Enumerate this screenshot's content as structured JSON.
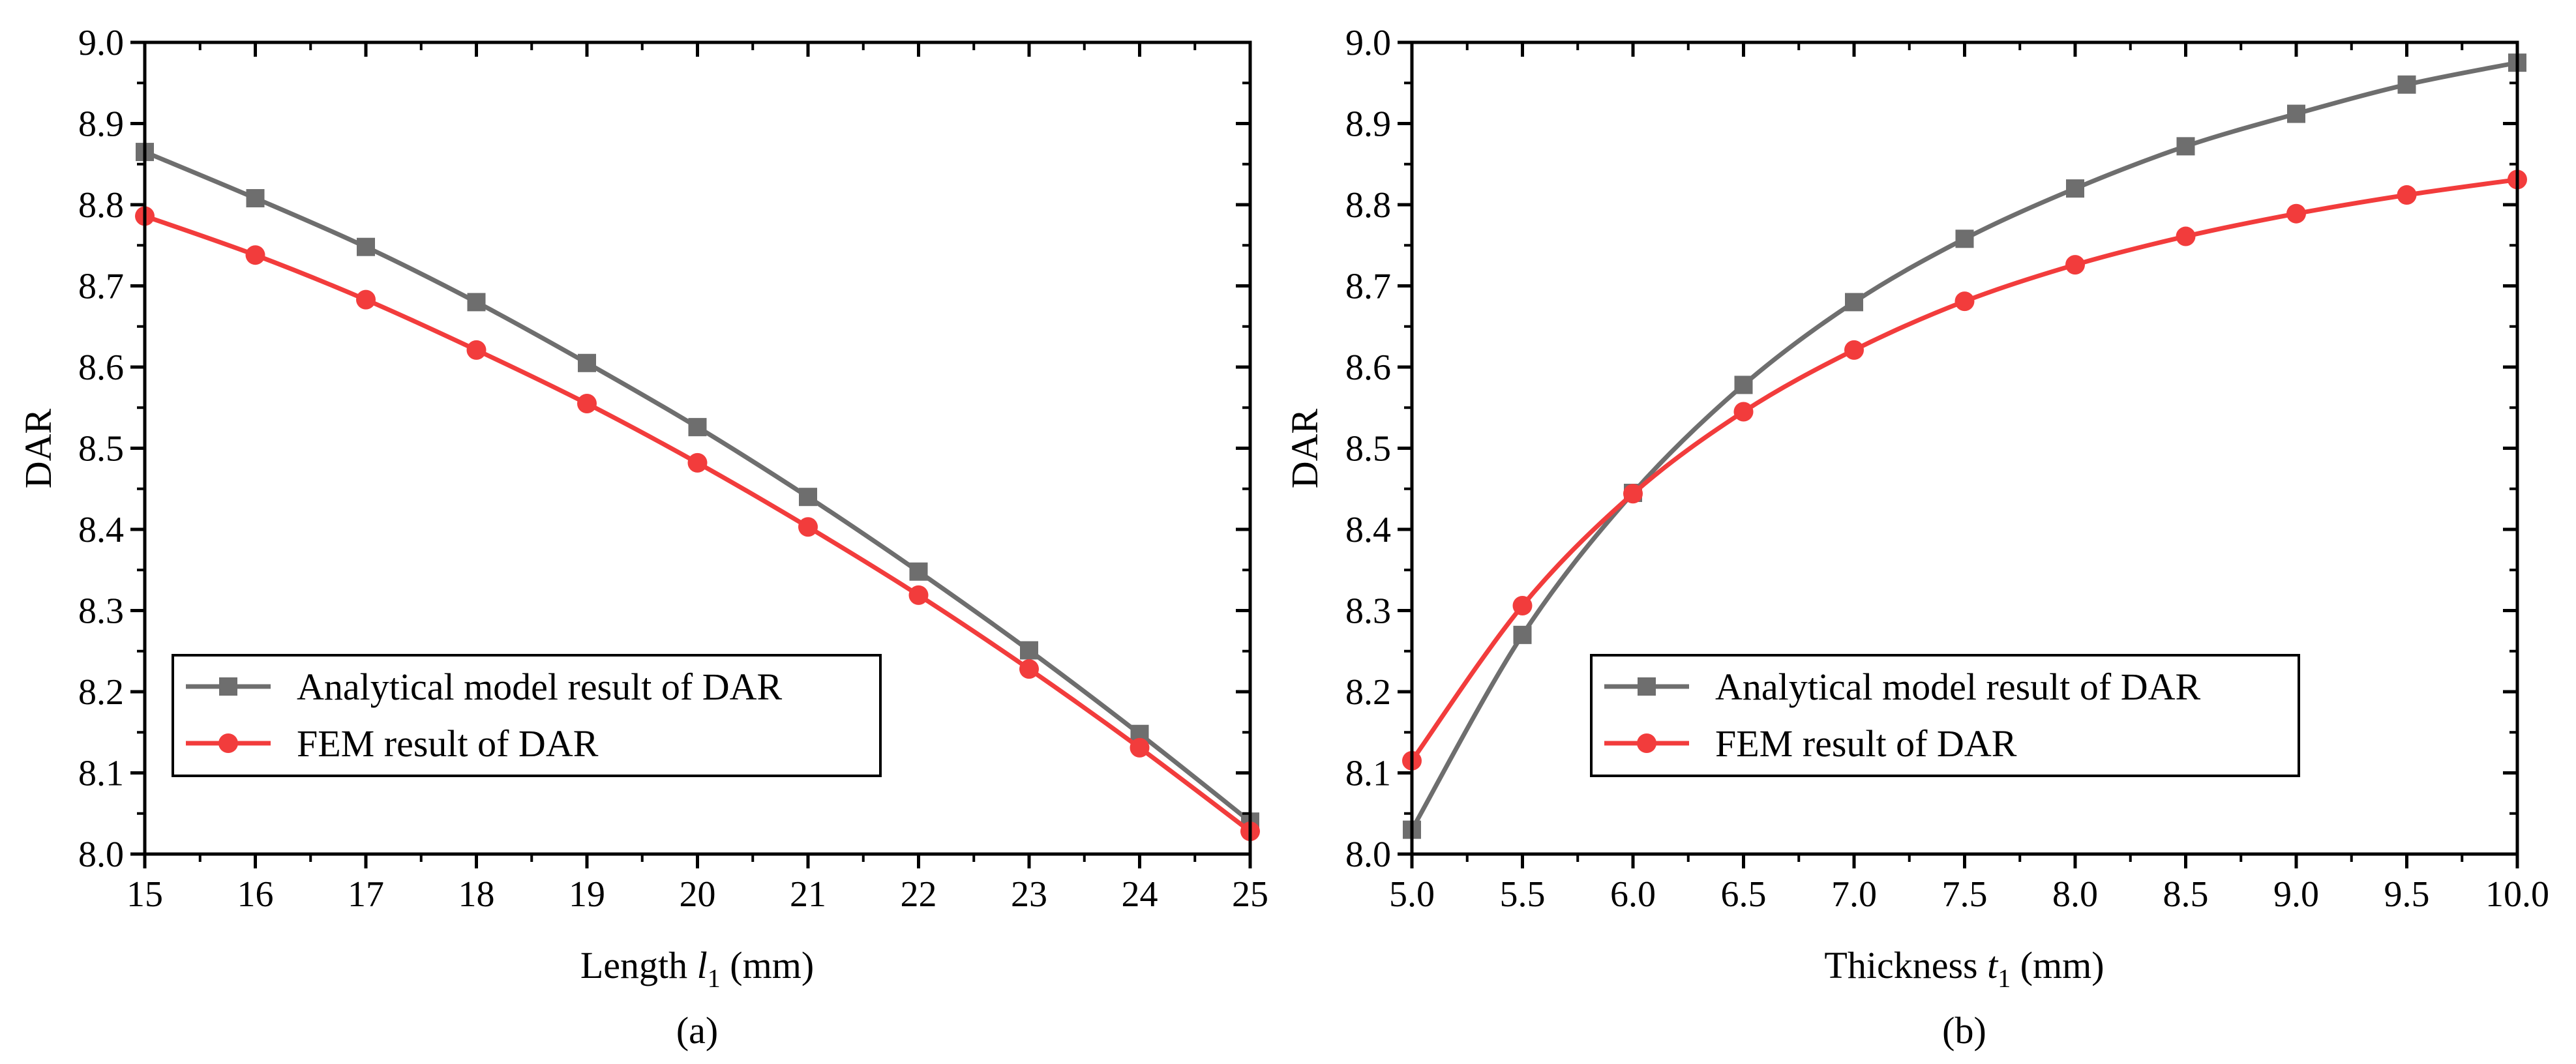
{
  "chart_data": [
    {
      "id": "a",
      "type": "line",
      "caption": "(a)",
      "xlabel_prefix": "Length ",
      "xlabel_var": "l",
      "xlabel_sub": "1",
      "xlabel_suffix": " (mm)",
      "ylabel": "DAR",
      "xlim": [
        15,
        25
      ],
      "ylim": [
        8.0,
        9.0
      ],
      "xticks": [
        15,
        16,
        17,
        18,
        19,
        20,
        21,
        22,
        23,
        24,
        25
      ],
      "xtick_labels": [
        "15",
        "16",
        "17",
        "18",
        "19",
        "20",
        "21",
        "22",
        "23",
        "24",
        "25"
      ],
      "yticks": [
        8.0,
        8.1,
        8.2,
        8.3,
        8.4,
        8.5,
        8.6,
        8.7,
        8.8,
        8.9,
        9.0
      ],
      "ytick_labels": [
        "8.0",
        "8.1",
        "8.2",
        "8.3",
        "8.4",
        "8.5",
        "8.6",
        "8.7",
        "8.8",
        "8.9",
        "9.0"
      ],
      "x": [
        15,
        16,
        17,
        18,
        19,
        20,
        21,
        22,
        23,
        24,
        25
      ],
      "series": [
        {
          "name": "Analytical model result of DAR",
          "color": "#6e6e6e",
          "marker": "square",
          "values": [
            8.865,
            8.808,
            8.748,
            8.68,
            8.605,
            8.526,
            8.44,
            8.348,
            8.251,
            8.148,
            8.04
          ]
        },
        {
          "name": "FEM result of DAR",
          "color": "#f23c3c",
          "marker": "circle",
          "values": [
            8.786,
            8.738,
            8.683,
            8.621,
            8.555,
            8.482,
            8.403,
            8.319,
            8.228,
            8.131,
            8.028
          ]
        }
      ],
      "legend_position": "bottom-left"
    },
    {
      "id": "b",
      "type": "line",
      "caption": "(b)",
      "xlabel_prefix": "Thickness ",
      "xlabel_var": "t",
      "xlabel_sub": "1",
      "xlabel_suffix": " (mm)",
      "ylabel": "DAR",
      "xlim": [
        5.0,
        10.0
      ],
      "ylim": [
        8.0,
        9.0
      ],
      "xticks": [
        5.0,
        5.5,
        6.0,
        6.5,
        7.0,
        7.5,
        8.0,
        8.5,
        9.0,
        9.5,
        10.0
      ],
      "xtick_labels": [
        "5.0",
        "5.5",
        "6.0",
        "6.5",
        "7.0",
        "7.5",
        "8.0",
        "8.5",
        "9.0",
        "9.5",
        "10.0"
      ],
      "yticks": [
        8.0,
        8.1,
        8.2,
        8.3,
        8.4,
        8.5,
        8.6,
        8.7,
        8.8,
        8.9,
        9.0
      ],
      "ytick_labels": [
        "8.0",
        "8.1",
        "8.2",
        "8.3",
        "8.4",
        "8.5",
        "8.6",
        "8.7",
        "8.8",
        "8.9",
        "9.0"
      ],
      "x": [
        5.0,
        5.5,
        6.0,
        6.5,
        7.0,
        7.5,
        8.0,
        8.5,
        9.0,
        9.5,
        10.0
      ],
      "series": [
        {
          "name": "Analytical model result of DAR",
          "color": "#6e6e6e",
          "marker": "square",
          "values": [
            8.03,
            8.27,
            8.445,
            8.578,
            8.68,
            8.758,
            8.82,
            8.872,
            8.912,
            8.948,
            8.975
          ]
        },
        {
          "name": "FEM result of DAR",
          "color": "#f23c3c",
          "marker": "circle",
          "values": [
            8.115,
            8.306,
            8.444,
            8.545,
            8.621,
            8.681,
            8.726,
            8.761,
            8.789,
            8.812,
            8.831
          ]
        }
      ],
      "legend_position": "bottom-center"
    }
  ]
}
